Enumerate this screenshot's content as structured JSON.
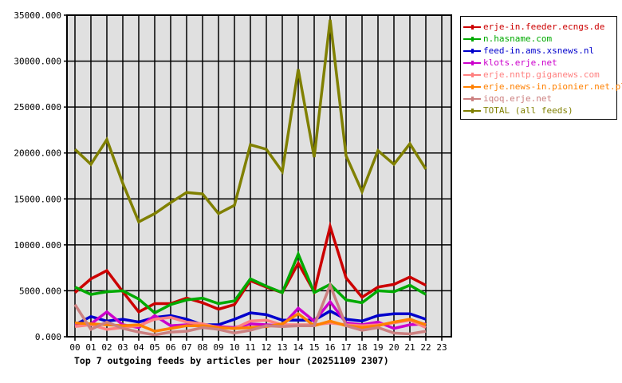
{
  "chart_data": {
    "type": "line",
    "title": "Top 7 outgoing feeds by articles per hour (20251109 2307)",
    "xlabel": "",
    "ylabel": "",
    "ylim": [
      0,
      35000
    ],
    "yticks": [
      "0.000",
      "5000.000",
      "10000.000",
      "15000.000",
      "20000.000",
      "25000.000",
      "30000.000",
      "35000.000"
    ],
    "x": [
      "00",
      "01",
      "02",
      "03",
      "04",
      "05",
      "06",
      "07",
      "08",
      "09",
      "10",
      "11",
      "12",
      "13",
      "14",
      "15",
      "16",
      "17",
      "18",
      "19",
      "20",
      "21",
      "22",
      "23"
    ],
    "grid": true,
    "legend_position": "right",
    "series": [
      {
        "name": "erje-in.feeder.ecngs.de",
        "color": "#cc0000",
        "values": [
          4800,
          6300,
          7200,
          4900,
          2700,
          3600,
          3600,
          4200,
          3700,
          3000,
          3500,
          6100,
          5400,
          4800,
          8000,
          4900,
          12000,
          6400,
          4300,
          5400,
          5700,
          6500,
          5600
        ]
      },
      {
        "name": "n.hasname.com",
        "color": "#00aa00",
        "values": [
          5400,
          4600,
          4900,
          5000,
          4100,
          2600,
          3500,
          4000,
          4200,
          3600,
          3900,
          6300,
          5500,
          4800,
          9000,
          4800,
          5700,
          4000,
          3700,
          5000,
          4900,
          5600,
          4600
        ]
      },
      {
        "name": "feed-in.ams.xsnews.nl",
        "color": "#0000cc",
        "values": [
          1300,
          2200,
          1700,
          1900,
          1600,
          2100,
          2300,
          1900,
          1300,
          1300,
          1900,
          2600,
          2400,
          1800,
          1800,
          1800,
          2800,
          1900,
          1700,
          2300,
          2500,
          2500,
          1900
        ]
      },
      {
        "name": "klots.erje.net",
        "color": "#cc00cc",
        "values": [
          1200,
          1400,
          2700,
          1300,
          1000,
          2300,
          1200,
          1300,
          1200,
          1100,
          1000,
          1400,
          1300,
          1200,
          3100,
          1700,
          3800,
          1500,
          1300,
          1600,
          900,
          1300,
          1400
        ]
      },
      {
        "name": "erje.nntp.giganews.com",
        "color": "#ff8080",
        "values": [
          1100,
          1300,
          800,
          1000,
          1200,
          1900,
          2100,
          1600,
          1400,
          1000,
          900,
          1700,
          1800,
          1300,
          1300,
          1300,
          1500,
          1300,
          1200,
          1300,
          1500,
          1800,
          1000
        ]
      },
      {
        "name": "erje.news-in.pionier.net.pl",
        "color": "#ff8000",
        "values": [
          1500,
          1400,
          1300,
          1200,
          1300,
          600,
          900,
          1200,
          1200,
          1000,
          900,
          1000,
          1100,
          1400,
          2500,
          1200,
          1700,
          1200,
          1000,
          1200,
          1600,
          1900,
          1300
        ]
      },
      {
        "name": "iqoq.erje.net",
        "color": "#cc8080",
        "values": [
          3500,
          800,
          1600,
          900,
          500,
          200,
          500,
          600,
          1000,
          800,
          400,
          700,
          1200,
          1100,
          1200,
          1200,
          5600,
          1200,
          700,
          1000,
          400,
          300,
          600
        ]
      },
      {
        "name": "TOTAL (all feeds)",
        "color": "#808000",
        "values": [
          20400,
          18770,
          21460,
          16700,
          12500,
          13400,
          14600,
          15700,
          15550,
          13400,
          14300,
          20900,
          20400,
          17980,
          29100,
          19550,
          34500,
          19700,
          15800,
          20250,
          18770,
          21000,
          18250
        ]
      }
    ]
  }
}
